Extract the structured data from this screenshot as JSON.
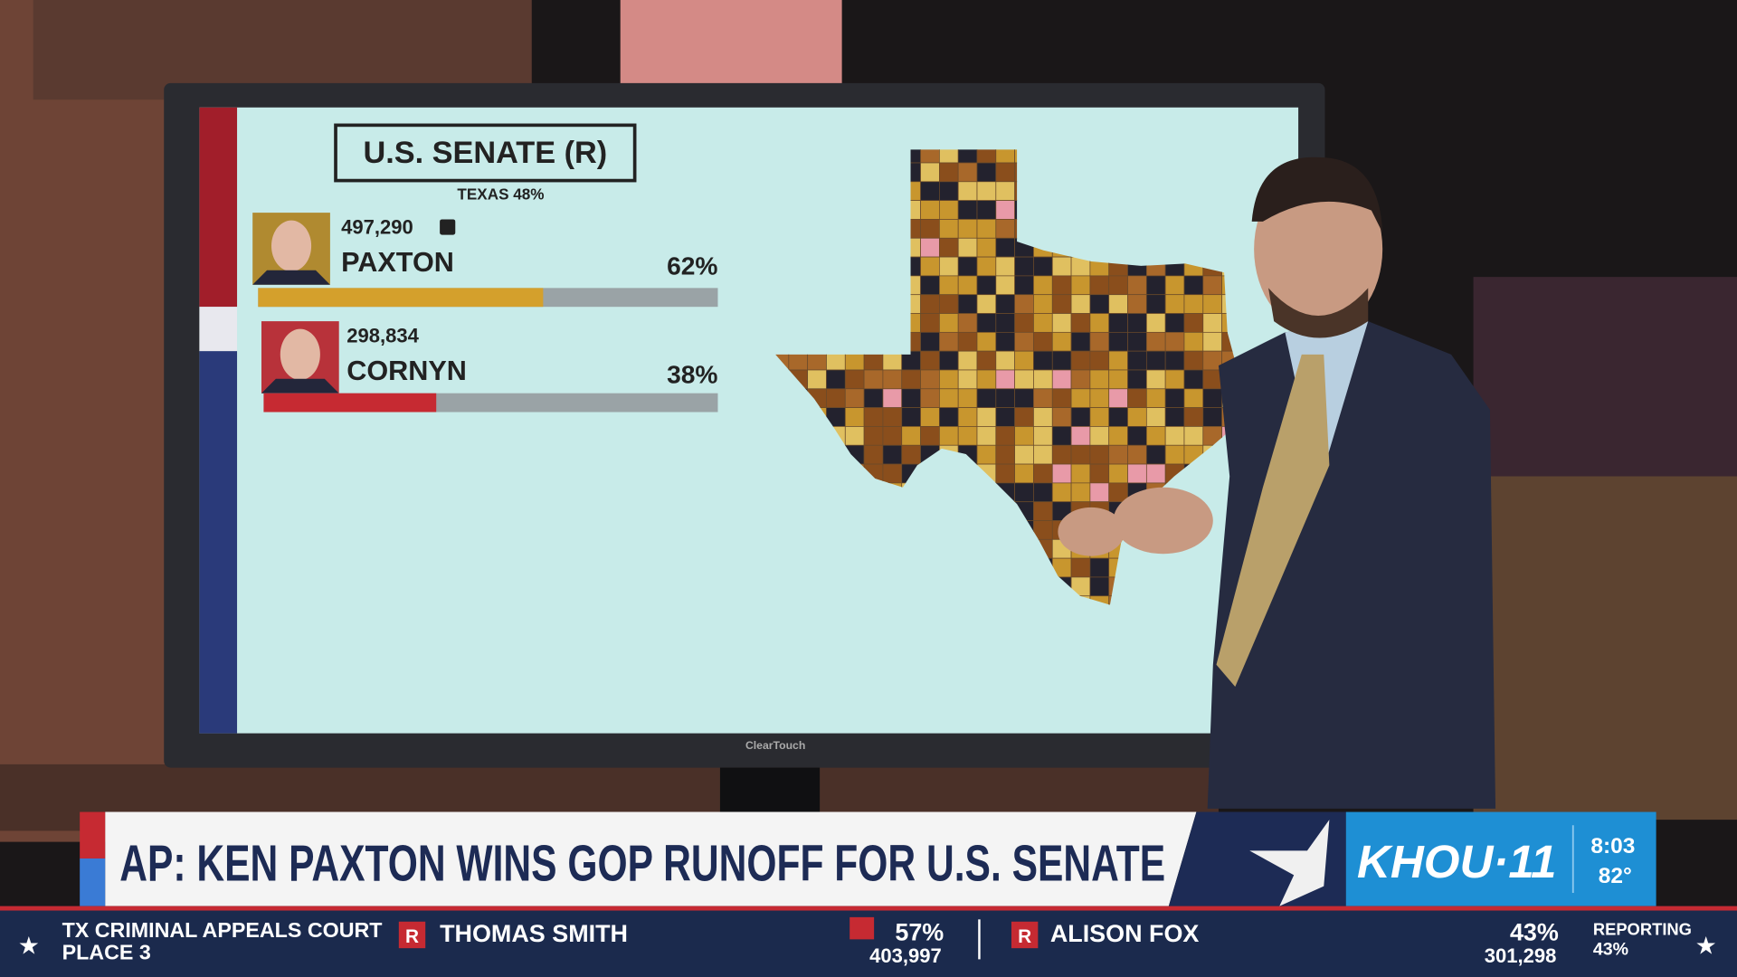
{
  "screen": {
    "title": "U.S. SENATE (R)",
    "region": "TEXAS 48%",
    "candidates": [
      {
        "votes": "497,290",
        "name": "PAXTON",
        "pct": 62,
        "pct_label": "62%"
      },
      {
        "votes": "298,834",
        "name": "CORNYN",
        "pct": 38,
        "pct_label": "38%"
      }
    ],
    "monitor_brand": "ClearTouch"
  },
  "lower_third": {
    "headline": "AP: KEN PAXTON WINS GOP RUNOFF FOR U.S. SENATE",
    "logo": "KHOU·11",
    "time": "8:03",
    "temperature": "82°"
  },
  "ticker": {
    "race_line1": "TX CRIMINAL APPEALS COURT",
    "race_line2": "PLACE 3",
    "candidates": [
      {
        "party": "R",
        "name": "THOMAS SMITH",
        "pct": "57%",
        "votes": "403,997"
      },
      {
        "party": "R",
        "name": "ALISON FOX",
        "pct": "43%",
        "votes": "301,298"
      }
    ],
    "reporting_label": "REPORTING",
    "reporting": "43%"
  }
}
